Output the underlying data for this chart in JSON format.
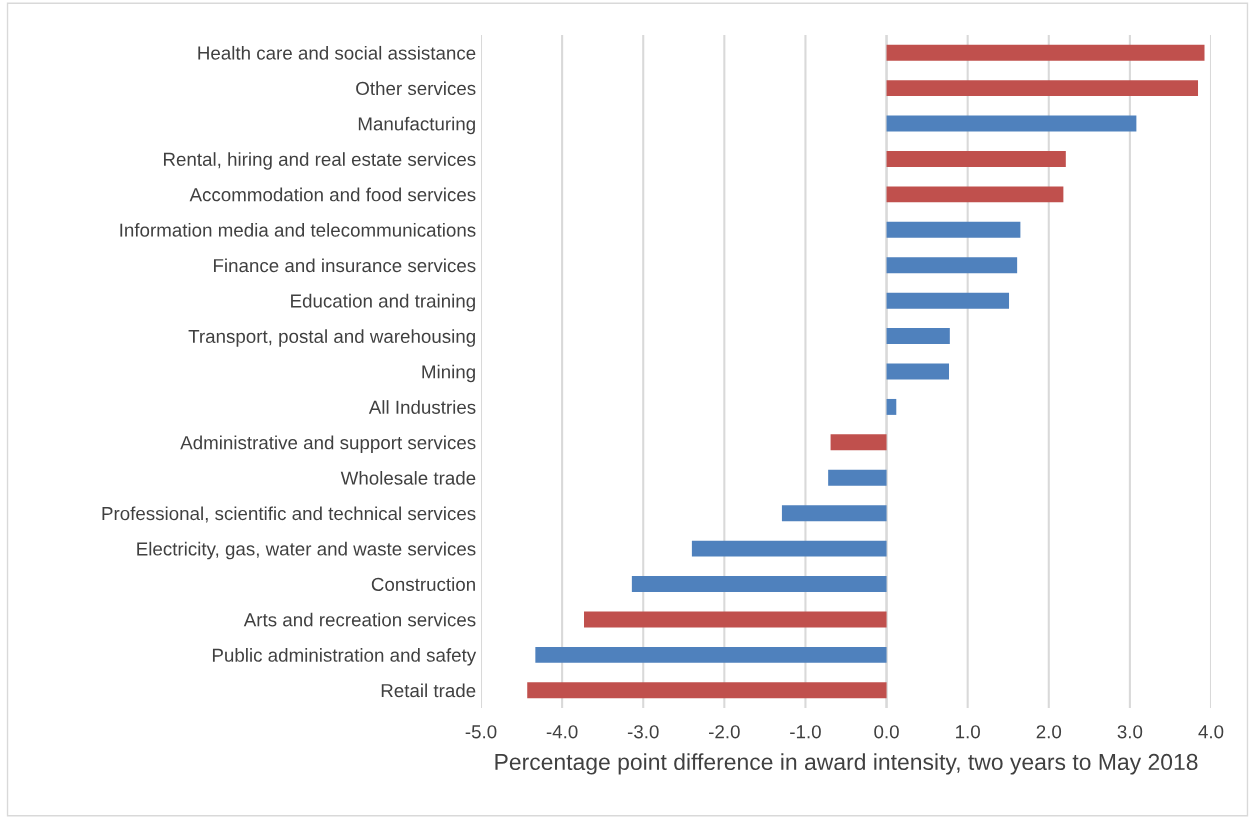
{
  "chart_data": {
    "type": "bar",
    "orientation": "horizontal",
    "xlabel": "Percentage point difference in award intensity, two years to May 2018",
    "categories": [
      "Health care and social assistance",
      "Other services",
      "Manufacturing",
      "Rental, hiring and real estate services",
      "Accommodation and food services",
      "Information media and telecommunications",
      "Finance and insurance services",
      "Education and training",
      "Transport, postal and warehousing",
      "Mining",
      "All Industries",
      "Administrative and support services",
      "Wholesale trade",
      "Professional, scientific and technical services",
      "Electricity, gas, water and waste services",
      "Construction",
      "Arts and recreation services",
      "Public administration and safety",
      "Retail trade"
    ],
    "values": [
      3.92,
      3.84,
      3.08,
      2.21,
      2.18,
      1.65,
      1.61,
      1.51,
      0.78,
      0.77,
      0.12,
      -0.69,
      -0.72,
      -1.29,
      -2.4,
      -3.14,
      -3.73,
      -4.33,
      -4.43
    ],
    "colors": [
      "#c0504d",
      "#c0504d",
      "#4f81bd",
      "#c0504d",
      "#c0504d",
      "#4f81bd",
      "#4f81bd",
      "#4f81bd",
      "#4f81bd",
      "#4f81bd",
      "#4f81bd",
      "#c0504d",
      "#4f81bd",
      "#4f81bd",
      "#4f81bd",
      "#4f81bd",
      "#c0504d",
      "#4f81bd",
      "#c0504d"
    ],
    "xlim": [
      -5,
      4
    ],
    "xticks": [
      {
        "value": -5,
        "label": "-5.0"
      },
      {
        "value": -4,
        "label": "-4.0"
      },
      {
        "value": -3,
        "label": "-3.0"
      },
      {
        "value": -2,
        "label": "-2.0"
      },
      {
        "value": -1,
        "label": "-1.0"
      },
      {
        "value": 0,
        "label": "0.0"
      },
      {
        "value": 1,
        "label": "1.0"
      },
      {
        "value": 2,
        "label": "2.0"
      },
      {
        "value": 3,
        "label": "3.0"
      },
      {
        "value": 4,
        "label": "4.0"
      }
    ],
    "grid": "x",
    "legend": false
  }
}
